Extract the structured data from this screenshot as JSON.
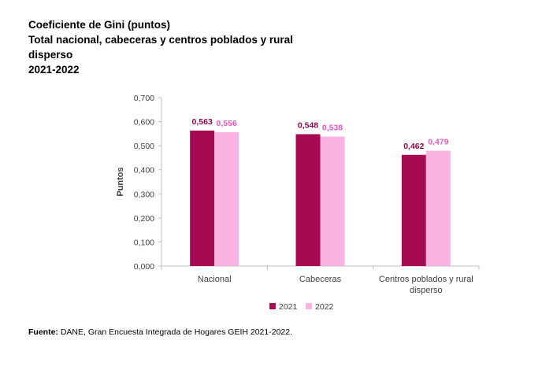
{
  "title_lines": [
    "Coeficiente de Gini (puntos)",
    "Total nacional, cabeceras y centros poblados y rural",
    "disperso",
    "2021-2022"
  ],
  "source": {
    "label": "Fuente:",
    "text": "DANE, Gran Encuesta Integrada de Hogares GEIH 2021-2022."
  },
  "chart_data": {
    "type": "bar",
    "categories": [
      "Nacional",
      "Cabeceras",
      "Centros poblados y rural disperso"
    ],
    "category_label_lines": [
      [
        "Nacional"
      ],
      [
        "Cabeceras"
      ],
      [
        "Centros poblados y rural",
        "disperso"
      ]
    ],
    "series": [
      {
        "name": "2021",
        "values": [
          0.563,
          0.548,
          0.462
        ],
        "labels": [
          "0,563",
          "0,548",
          "0,462"
        ],
        "color": "#a50a53"
      },
      {
        "name": "2022",
        "values": [
          0.556,
          0.538,
          0.479
        ],
        "labels": [
          "0,556",
          "0,538",
          "0,479"
        ],
        "color": "#f8b3e3"
      }
    ],
    "label_colors": {
      "2021": "#8b0a4a",
      "2022": "#e05ac0"
    },
    "ylabel": "Puntos",
    "ylim": [
      0,
      0.7
    ],
    "yticks": [
      0,
      0.1,
      0.2,
      0.3,
      0.4,
      0.5,
      0.6,
      0.7
    ],
    "ytick_labels": [
      "0,000",
      "0,100",
      "0,200",
      "0,300",
      "0,400",
      "0,500",
      "0,600",
      "0,700"
    ],
    "grid": false,
    "legend": "bottom"
  }
}
